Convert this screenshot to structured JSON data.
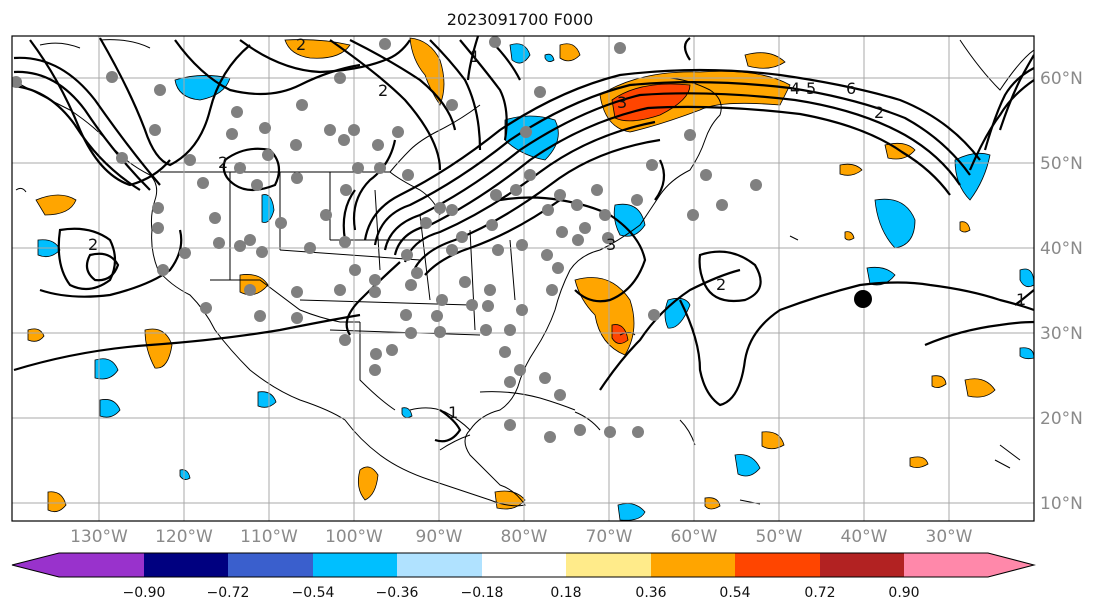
{
  "title": "2023091700 F000",
  "lat_labels": [
    "60°N",
    "50°N",
    "40°N",
    "30°N",
    "20°N",
    "10°N"
  ],
  "lon_labels": [
    "130°W",
    "120°W",
    "110°W",
    "100°W",
    "90°W",
    "80°W",
    "70°W",
    "60°W",
    "50°W",
    "40°W",
    "30°W"
  ],
  "colorbar": {
    "colors": [
      "#9932cc",
      "#000080",
      "#3a5fcd",
      "#00bfff",
      "#b0e2ff",
      "#ffffff",
      "#ffeb8a",
      "#ffa500",
      "#ff4500",
      "#b22222",
      "#ff88aa"
    ],
    "ticks": [
      "−0.90",
      "−0.72",
      "−0.54",
      "−0.36",
      "−0.18",
      "0.18",
      "0.36",
      "0.54",
      "0.72",
      "0.90"
    ]
  },
  "contour_labels": [
    "2",
    "2",
    "2",
    "3",
    "4",
    "5",
    "6",
    "2",
    "1",
    "1",
    "2",
    "3",
    "2",
    "1"
  ],
  "colors": {
    "grid": "#a8a8a8",
    "contour": "#000000",
    "station": "#808080",
    "marker": "#000000"
  }
}
